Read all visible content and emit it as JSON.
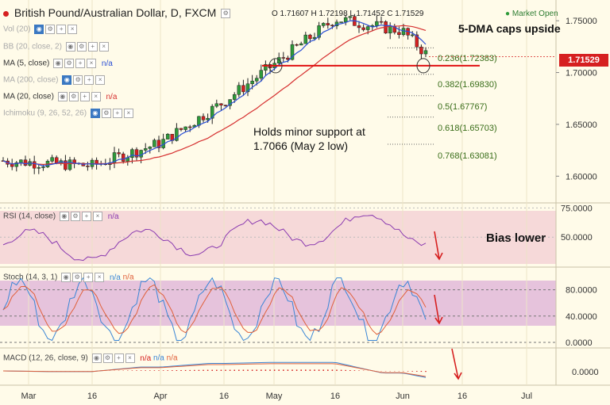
{
  "header": {
    "title": "British Pound/Australian Dollar, D, FXCM",
    "ohlc": "O 1.71607 H 1.72198 L 1.71452 C 1.71529",
    "market_status": "Market Open"
  },
  "indicators": [
    {
      "label": "Vol (20)"
    },
    {
      "label": "BB (20, close, 2)"
    },
    {
      "label": "MA (5, close)",
      "value": "n/a"
    },
    {
      "label": "MA (200, close)"
    },
    {
      "label": "MA (20, close)",
      "value": "n/a"
    },
    {
      "label": "Ichimoku (9, 26, 52, 26)"
    }
  ],
  "sub_panels": {
    "rsi": {
      "label": "RSI (14, close)",
      "value": "n/a"
    },
    "stoch": {
      "label": "Stoch (14, 3, 1)",
      "value1": "n/a",
      "value2": "n/a"
    },
    "macd": {
      "label": "MACD (12, 26, close, 9)",
      "value1": "n/a",
      "value2": "n/a",
      "value3": "n/a"
    }
  },
  "annotations": {
    "dma": "5-DMA caps upside",
    "support_1": "Holds minor support at",
    "support_2": "1.7066 (May 2 low)",
    "bias": "Bias lower"
  },
  "fib_levels": [
    {
      "label": "0.236(1.72383)"
    },
    {
      "label": "0.382(1.69830)"
    },
    {
      "label": "0.5(1.67767)"
    },
    {
      "label": "0.618(1.65703)"
    },
    {
      "label": "0.768(1.63081)"
    }
  ],
  "price_axis": [
    "1.75000",
    "1.70000",
    "1.65000",
    "1.60000"
  ],
  "current_price": "1.71529",
  "rsi_axis": [
    "75.0000",
    "50.0000"
  ],
  "stoch_axis": [
    "80.0000",
    "40.0000",
    "0.0000"
  ],
  "macd_axis": [
    "0.0000"
  ],
  "x_axis": [
    "Mar",
    "16",
    "Apr",
    "16",
    "May",
    "16",
    "Jun",
    "16",
    "Jul"
  ],
  "colors": {
    "bull": "#2e9b3a",
    "bear": "#d62020",
    "ma5": "#2a4fd6",
    "ma20": "#d63030",
    "support_line": "#e01010",
    "fib_text": "#3a6e1a",
    "rsi_line": "#8a3ab0",
    "rsi_band": "#f6d9d9",
    "stoch_band": "#e6c3dc",
    "stoch_k": "#3a86d6",
    "stoch_d": "#e0603a",
    "price_badge": "#d62020"
  },
  "chart_data": {
    "type": "candlestick",
    "title": "British Pound/Australian Dollar, D, FXCM",
    "x": [
      "2018-03-01",
      "2018-03-16",
      "2018-04-01",
      "2018-04-16",
      "2018-05-01",
      "2018-05-16",
      "2018-06-01",
      "2018-06-08"
    ],
    "close": [
      1.615,
      1.61,
      1.632,
      1.672,
      1.708,
      1.752,
      1.74,
      1.7153
    ],
    "support": 1.7066,
    "fib": [
      {
        "ratio": 0.236,
        "value": 1.72383
      },
      {
        "ratio": 0.382,
        "value": 1.6983
      },
      {
        "ratio": 0.5,
        "value": 1.67767
      },
      {
        "ratio": 0.618,
        "value": 1.65703
      },
      {
        "ratio": 0.768,
        "value": 1.63081
      }
    ],
    "ylim": [
      1.575,
      1.77
    ],
    "rsi_ylim": [
      25,
      78
    ],
    "stoch_ylim": [
      0,
      100
    ],
    "grid": true
  }
}
